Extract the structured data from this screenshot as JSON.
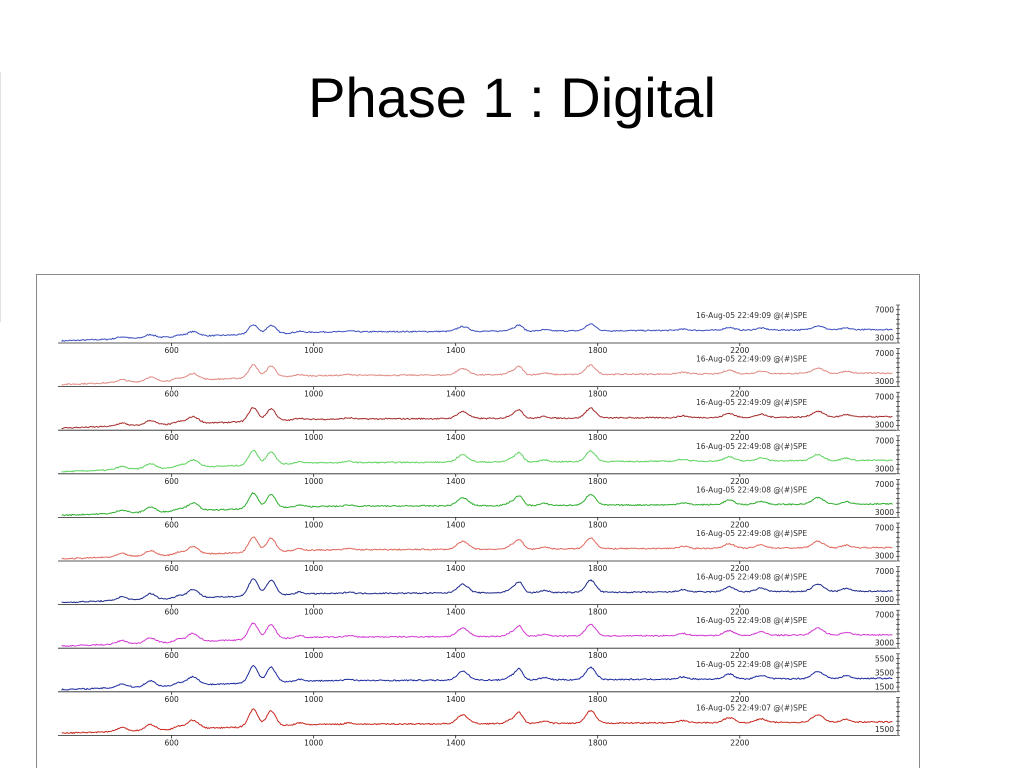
{
  "slide": {
    "title": "Phase 1 : Digital"
  },
  "chart_data": {
    "type": "line",
    "title": "",
    "xlabel": "",
    "ylabel": "",
    "x_ticks": [
      600,
      1000,
      1400,
      1800,
      2200
    ],
    "xlim": [
      280,
      2640
    ],
    "grid": false,
    "peaks": [
      {
        "x": 460,
        "h": 0.1,
        "w": 14
      },
      {
        "x": 540,
        "h": 0.16,
        "w": 14
      },
      {
        "x": 620,
        "h": 0.08,
        "w": 12
      },
      {
        "x": 660,
        "h": 0.24,
        "w": 16
      },
      {
        "x": 830,
        "h": 0.48,
        "w": 13
      },
      {
        "x": 880,
        "h": 0.42,
        "w": 13
      },
      {
        "x": 960,
        "h": 0.06,
        "w": 12
      },
      {
        "x": 1100,
        "h": 0.04,
        "w": 12
      },
      {
        "x": 1420,
        "h": 0.24,
        "w": 16
      },
      {
        "x": 1560,
        "h": 0.12,
        "w": 14
      },
      {
        "x": 1580,
        "h": 0.26,
        "w": 10
      },
      {
        "x": 1650,
        "h": 0.06,
        "w": 12
      },
      {
        "x": 1780,
        "h": 0.34,
        "w": 14
      },
      {
        "x": 2040,
        "h": 0.06,
        "w": 14
      },
      {
        "x": 2170,
        "h": 0.14,
        "w": 14
      },
      {
        "x": 2260,
        "h": 0.1,
        "w": 14
      },
      {
        "x": 2420,
        "h": 0.2,
        "w": 16
      },
      {
        "x": 2500,
        "h": 0.08,
        "w": 12
      }
    ],
    "series": [
      {
        "color": "#3b4fbf",
        "label": "16-Aug-05 22:49:09 @(#)SPE",
        "y_ticks": [
          "7000",
          "3000"
        ],
        "peak_scale": 0.55
      },
      {
        "color": "#e08a82",
        "label": "16-Aug-05 22:49:09 @(#)SPE",
        "y_ticks": [
          "7000",
          "3000"
        ],
        "peak_scale": 0.75
      },
      {
        "color": "#a52a2a",
        "label": "16-Aug-05 22:49:09 @(#)SPE",
        "y_ticks": [
          "7000",
          "3000"
        ],
        "peak_scale": 0.8
      },
      {
        "color": "#5fd35f",
        "label": "16-Aug-05 22:49:08 @(#)SPE",
        "y_ticks": [
          "7000",
          "3000"
        ],
        "peak_scale": 0.85
      },
      {
        "color": "#2eae2e",
        "label": "16-Aug-05 22:49:08 @(#)SPE",
        "y_ticks": [
          "7000",
          "3000"
        ],
        "peak_scale": 0.9
      },
      {
        "color": "#e0685c",
        "label": "16-Aug-05 22:49:08 @(#)SPE",
        "y_ticks": [
          "7000",
          "3000"
        ],
        "peak_scale": 0.9
      },
      {
        "color": "#1c2a8c",
        "label": "16-Aug-05 22:49:08 @(#)SPE",
        "y_ticks": [
          "7000",
          "3000"
        ],
        "peak_scale": 1.0
      },
      {
        "color": "#d43ad4",
        "label": "16-Aug-05 22:49:08 @(#)SPE",
        "y_ticks": [
          "7000",
          "3000"
        ],
        "peak_scale": 0.95
      },
      {
        "color": "#1c2aa0",
        "label": "16-Aug-05 22:49:08 @(#)SPE",
        "y_ticks": [
          "5500",
          "3500",
          "1500"
        ],
        "peak_scale": 1.0
      },
      {
        "color": "#c8281e",
        "label": "16-Aug-05 22:49:07 @(#)SPE",
        "y_ticks": [
          "1500"
        ],
        "peak_scale": 1.0
      }
    ]
  }
}
